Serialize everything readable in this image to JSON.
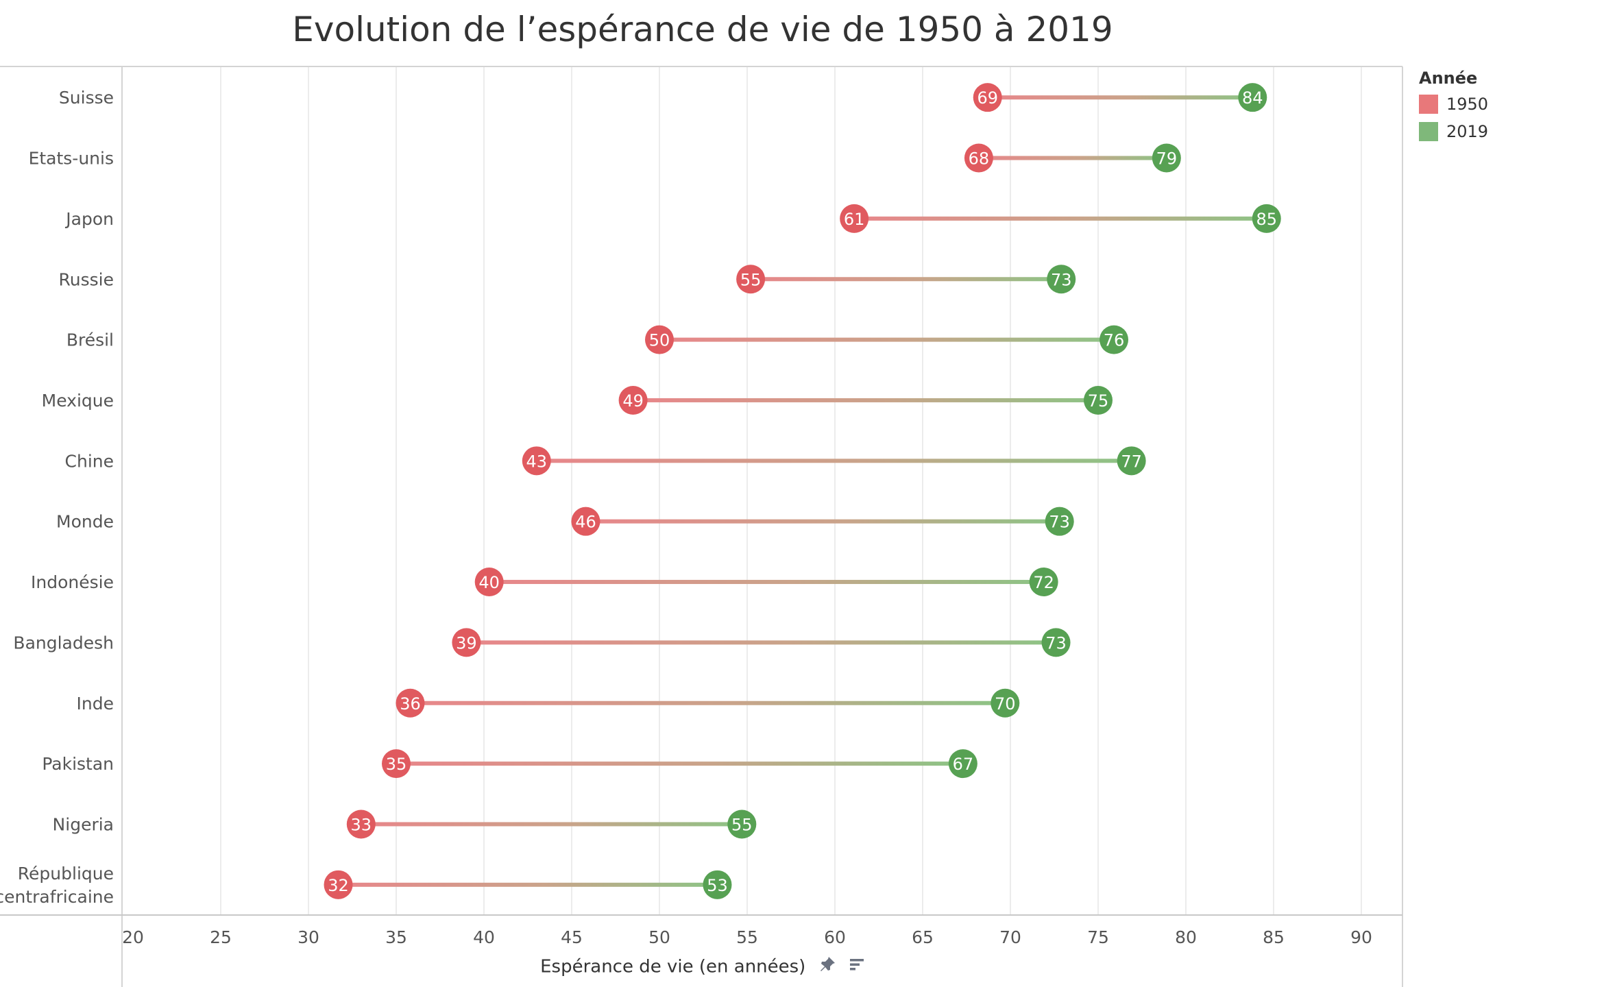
{
  "title": "Evolution de l’espérance de vie de 1950 à 2019",
  "legend": {
    "title": "Année",
    "items": [
      {
        "label": "1950",
        "color": "#e8787a"
      },
      {
        "label": "2019",
        "color": "#7fb87a"
      }
    ]
  },
  "toolbar": {
    "pin_icon": "pin-icon",
    "sort_icon": "sort-icon"
  },
  "chart_data": {
    "type": "dumbbell",
    "title": "Evolution de l’espérance de vie de 1950 à 2019",
    "xlabel": "Espérance de vie (en années)",
    "ylabel": "",
    "xlim": [
      20,
      90
    ],
    "xticks": [
      20,
      25,
      30,
      35,
      40,
      45,
      50,
      55,
      60,
      65,
      70,
      75,
      80,
      85,
      90
    ],
    "grid": true,
    "legend_position": "top-right",
    "series": [
      {
        "name": "1950",
        "color": "#e05a5f"
      },
      {
        "name": "2019",
        "color": "#57a153"
      }
    ],
    "categories": [
      {
        "label": "Suisse",
        "v1950": 68.7,
        "v2019": 83.8,
        "l1950": "69",
        "l2019": "84"
      },
      {
        "label": "Etats-unis",
        "v1950": 68.2,
        "v2019": 78.9,
        "l1950": "68",
        "l2019": "79"
      },
      {
        "label": "Japon",
        "v1950": 61.1,
        "v2019": 84.6,
        "l1950": "61",
        "l2019": "85"
      },
      {
        "label": "Russie",
        "v1950": 55.2,
        "v2019": 72.9,
        "l1950": "55",
        "l2019": "73"
      },
      {
        "label": "Brésil",
        "v1950": 50.0,
        "v2019": 75.9,
        "l1950": "50",
        "l2019": "76"
      },
      {
        "label": "Mexique",
        "v1950": 48.5,
        "v2019": 75.0,
        "l1950": "49",
        "l2019": "75"
      },
      {
        "label": "Chine",
        "v1950": 43.0,
        "v2019": 76.9,
        "l1950": "43",
        "l2019": "77"
      },
      {
        "label": "Monde",
        "v1950": 45.8,
        "v2019": 72.8,
        "l1950": "46",
        "l2019": "73"
      },
      {
        "label": "Indonésie",
        "v1950": 40.3,
        "v2019": 71.9,
        "l1950": "40",
        "l2019": "72"
      },
      {
        "label": "Bangladesh",
        "v1950": 39.0,
        "v2019": 72.6,
        "l1950": "39",
        "l2019": "73"
      },
      {
        "label": "Inde",
        "v1950": 35.8,
        "v2019": 69.7,
        "l1950": "36",
        "l2019": "70"
      },
      {
        "label": "Pakistan",
        "v1950": 35.0,
        "v2019": 67.3,
        "l1950": "35",
        "l2019": "67"
      },
      {
        "label": "Nigeria",
        "v1950": 33.0,
        "v2019": 54.7,
        "l1950": "33",
        "l2019": "55"
      },
      {
        "label": "République centrafricaine",
        "v1950": 31.7,
        "v2019": 53.3,
        "l1950": "32",
        "l2019": "53"
      }
    ]
  }
}
